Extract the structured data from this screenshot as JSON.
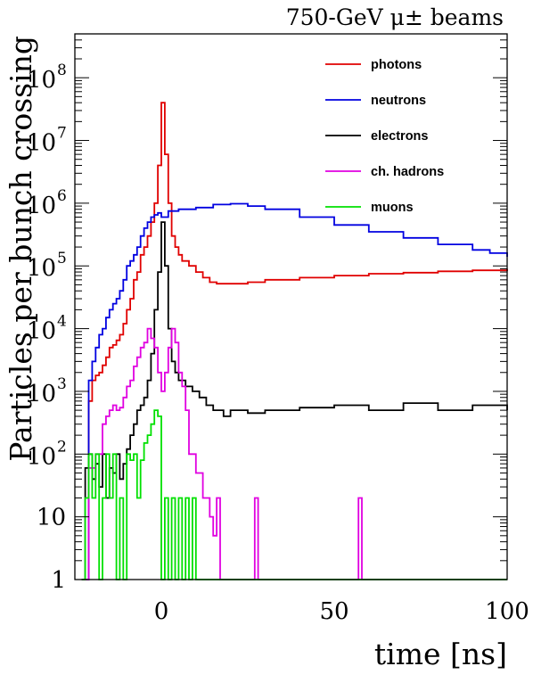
{
  "chart_data": {
    "type": "line",
    "title": "750-GeV μ± beams",
    "xlabel": "time [ns]",
    "ylabel": "Particles per bunch crossing",
    "xlim": [
      -25,
      100
    ],
    "ylim": [
      1,
      500000000
    ],
    "yscale": "log",
    "grid": false,
    "legend_position": "top-right",
    "x_ticks": [
      {
        "value": 0,
        "label": "0"
      },
      {
        "value": 50,
        "label": "50"
      },
      {
        "value": 100,
        "label": "100"
      }
    ],
    "y_ticks": [
      {
        "value": 1,
        "label": "1"
      },
      {
        "value": 10,
        "label": "10"
      },
      {
        "value": 100,
        "label": "10",
        "exp": "2"
      },
      {
        "value": 1000,
        "label": "10",
        "exp": "3"
      },
      {
        "value": 10000,
        "label": "10",
        "exp": "4"
      },
      {
        "value": 100000,
        "label": "10",
        "exp": "5"
      },
      {
        "value": 1000000,
        "label": "10",
        "exp": "6"
      },
      {
        "value": 10000000,
        "label": "10",
        "exp": "7"
      },
      {
        "value": 100000000,
        "label": "10",
        "exp": "8"
      }
    ],
    "series": [
      {
        "name": "photons",
        "color": "#e00000",
        "x": [
          -23,
          -21,
          -20,
          -19,
          -18,
          -17,
          -16,
          -15,
          -14,
          -13,
          -12,
          -11,
          -10,
          -9,
          -8,
          -7,
          -6,
          -5,
          -4,
          -3,
          -2,
          -1,
          0,
          1,
          2,
          3,
          4,
          5,
          6,
          8,
          10,
          12,
          14,
          16,
          20,
          25,
          30,
          40,
          50,
          60,
          70,
          80,
          90,
          100
        ],
        "y": [
          1,
          700,
          1500,
          1800,
          2000,
          2600,
          3500,
          5000,
          5500,
          6500,
          8000,
          12000,
          20000,
          30000,
          60000,
          80000,
          150000,
          200000,
          300000,
          500000,
          1000000,
          4000000,
          40000000,
          6000000,
          1000000,
          300000,
          200000,
          150000,
          120000,
          100000,
          80000,
          65000,
          55000,
          52000,
          52000,
          55000,
          60000,
          65000,
          70000,
          75000,
          78000,
          82000,
          85000,
          90000
        ]
      },
      {
        "name": "neutrons",
        "color": "#0000e0",
        "x": [
          -23,
          -21,
          -20,
          -19,
          -18,
          -17,
          -16,
          -15,
          -14,
          -13,
          -12,
          -11,
          -10,
          -9,
          -8,
          -7,
          -6,
          -5,
          -4,
          -3,
          -2,
          -1,
          0,
          2,
          5,
          10,
          15,
          20,
          25,
          30,
          40,
          50,
          60,
          70,
          80,
          90,
          95,
          100
        ],
        "y": [
          1,
          1500,
          3000,
          5000,
          8000,
          10000,
          15000,
          20000,
          25000,
          30000,
          40000,
          60000,
          100000,
          120000,
          150000,
          200000,
          300000,
          400000,
          500000,
          600000,
          650000,
          700000,
          600000,
          750000,
          800000,
          850000,
          950000,
          980000,
          900000,
          800000,
          600000,
          450000,
          350000,
          280000,
          220000,
          180000,
          160000,
          140000
        ]
      },
      {
        "name": "electrons",
        "color": "#000000",
        "x": [
          -23,
          -22,
          -21,
          -20,
          -19,
          -18,
          -17,
          -16,
          -15,
          -14,
          -13,
          -12,
          -11,
          -10,
          -9,
          -8,
          -7,
          -6,
          -5,
          -4,
          -3,
          -2,
          -1,
          0,
          1,
          2,
          3,
          4,
          5,
          7,
          9,
          11,
          13,
          15,
          18,
          20,
          25,
          30,
          40,
          50,
          60,
          70,
          80,
          90,
          100
        ],
        "y": [
          1,
          60,
          100,
          40,
          70,
          30,
          100,
          20,
          60,
          50,
          100,
          40,
          70,
          120,
          200,
          300,
          500,
          600,
          800,
          1500,
          4000,
          20000,
          80000,
          500000,
          100000,
          10000,
          3000,
          2000,
          1500,
          1200,
          1000,
          800,
          600,
          500,
          400,
          500,
          450,
          500,
          550,
          600,
          500,
          650,
          500,
          600,
          500
        ]
      },
      {
        "name": "ch. hadrons",
        "color": "#e000e0",
        "x": [
          -23,
          -21,
          -19,
          -17,
          -16,
          -15,
          -14,
          -13,
          -12,
          -11,
          -10,
          -9,
          -8,
          -7,
          -6,
          -5,
          -4,
          -3,
          -2,
          -1,
          0,
          1,
          2,
          3,
          4,
          5,
          6,
          7,
          8,
          10,
          12,
          14,
          15,
          16,
          17,
          26,
          27,
          28,
          56,
          57,
          58,
          100
        ],
        "y": [
          1,
          60,
          100,
          300,
          400,
          500,
          600,
          500,
          550,
          800,
          1200,
          1500,
          2500,
          3500,
          5000,
          6000,
          10000,
          7000,
          5000,
          2000,
          1000,
          2000,
          5000,
          10000,
          6000,
          2000,
          1200,
          500,
          100,
          50,
          20,
          10,
          5,
          20,
          1,
          1,
          20,
          1,
          1,
          20,
          1,
          1
        ]
      },
      {
        "name": "muons",
        "color": "#00e000",
        "x": [
          -23,
          -22,
          -21,
          -20,
          -19,
          -18,
          -17,
          -16,
          -15,
          -14,
          -13,
          -12,
          -11,
          -10,
          -9,
          -8,
          -7,
          -6,
          -5,
          -4,
          -3,
          -2,
          -1,
          0,
          1,
          2,
          3,
          4,
          5,
          6,
          7,
          8,
          9,
          10,
          100
        ],
        "y": [
          1,
          20,
          100,
          20,
          100,
          1,
          20,
          100,
          20,
          100,
          1,
          20,
          1,
          100,
          80,
          100,
          20,
          80,
          150,
          200,
          300,
          500,
          400,
          1,
          20,
          1,
          20,
          1,
          20,
          1,
          20,
          1,
          20,
          1,
          1
        ]
      }
    ]
  }
}
